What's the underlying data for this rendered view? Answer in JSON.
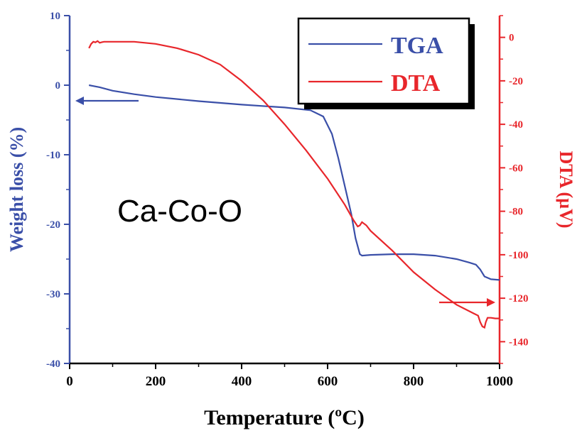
{
  "chart_data": {
    "type": "line",
    "annotation": "Ca-Co-O",
    "xlabel": "Temperature (ºC)",
    "ylabel_left": "Weight loss (%)",
    "ylabel_right": "DTA (µV)",
    "xlim": [
      0,
      1000
    ],
    "ylim_left": [
      -40,
      10
    ],
    "ylim_right": [
      -150,
      10
    ],
    "x_ticks": [
      "0",
      "200",
      "400",
      "600",
      "800",
      "1000"
    ],
    "y_left_ticks": [
      "10",
      "0",
      "-10",
      "-20",
      "-30",
      "-40"
    ],
    "y_right_ticks": [
      "0",
      "-20",
      "-40",
      "-60",
      "-80",
      "-100",
      "-120",
      "-140"
    ],
    "legend_position": "top-right",
    "series": [
      {
        "name": "TGA",
        "axis": "left",
        "color": "#3a4fa8",
        "x": [
          45,
          70,
          100,
          150,
          200,
          300,
          400,
          500,
          560,
          590,
          610,
          625,
          640,
          655,
          665,
          675,
          680,
          700,
          750,
          800,
          850,
          900,
          930,
          945,
          955,
          965,
          980,
          1000
        ],
        "y": [
          0,
          -0.3,
          -0.8,
          -1.3,
          -1.7,
          -2.3,
          -2.8,
          -3.2,
          -3.6,
          -4.5,
          -7.0,
          -10.5,
          -14.5,
          -18.5,
          -22.0,
          -24.3,
          -24.5,
          -24.4,
          -24.3,
          -24.3,
          -24.5,
          -25.0,
          -25.5,
          -25.8,
          -26.5,
          -27.5,
          -27.9,
          -28.0
        ]
      },
      {
        "name": "DTA",
        "axis": "right",
        "color": "#e8262b",
        "x": [
          45,
          50,
          55,
          60,
          65,
          70,
          75,
          80,
          100,
          150,
          200,
          250,
          300,
          350,
          400,
          450,
          500,
          550,
          600,
          640,
          660,
          670,
          675,
          680,
          690,
          700,
          750,
          800,
          850,
          900,
          940,
          950,
          955,
          960,
          965,
          968,
          972,
          980,
          990,
          1000
        ],
        "y": [
          -5,
          -3,
          -2,
          -2.3,
          -1.7,
          -2.5,
          -2.2,
          -2,
          -2,
          -2,
          -3,
          -5,
          -8,
          -12.5,
          -20,
          -29,
          -40,
          -52,
          -65,
          -77,
          -84,
          -87,
          -86.5,
          -85,
          -86.5,
          -89,
          -98,
          -108,
          -116,
          -123,
          -127,
          -128,
          -131,
          -133,
          -133.5,
          -131,
          -129,
          -129,
          -129.3,
          -129.3
        ]
      }
    ],
    "axis_arrows": [
      "TGA-left",
      "DTA-right"
    ]
  }
}
